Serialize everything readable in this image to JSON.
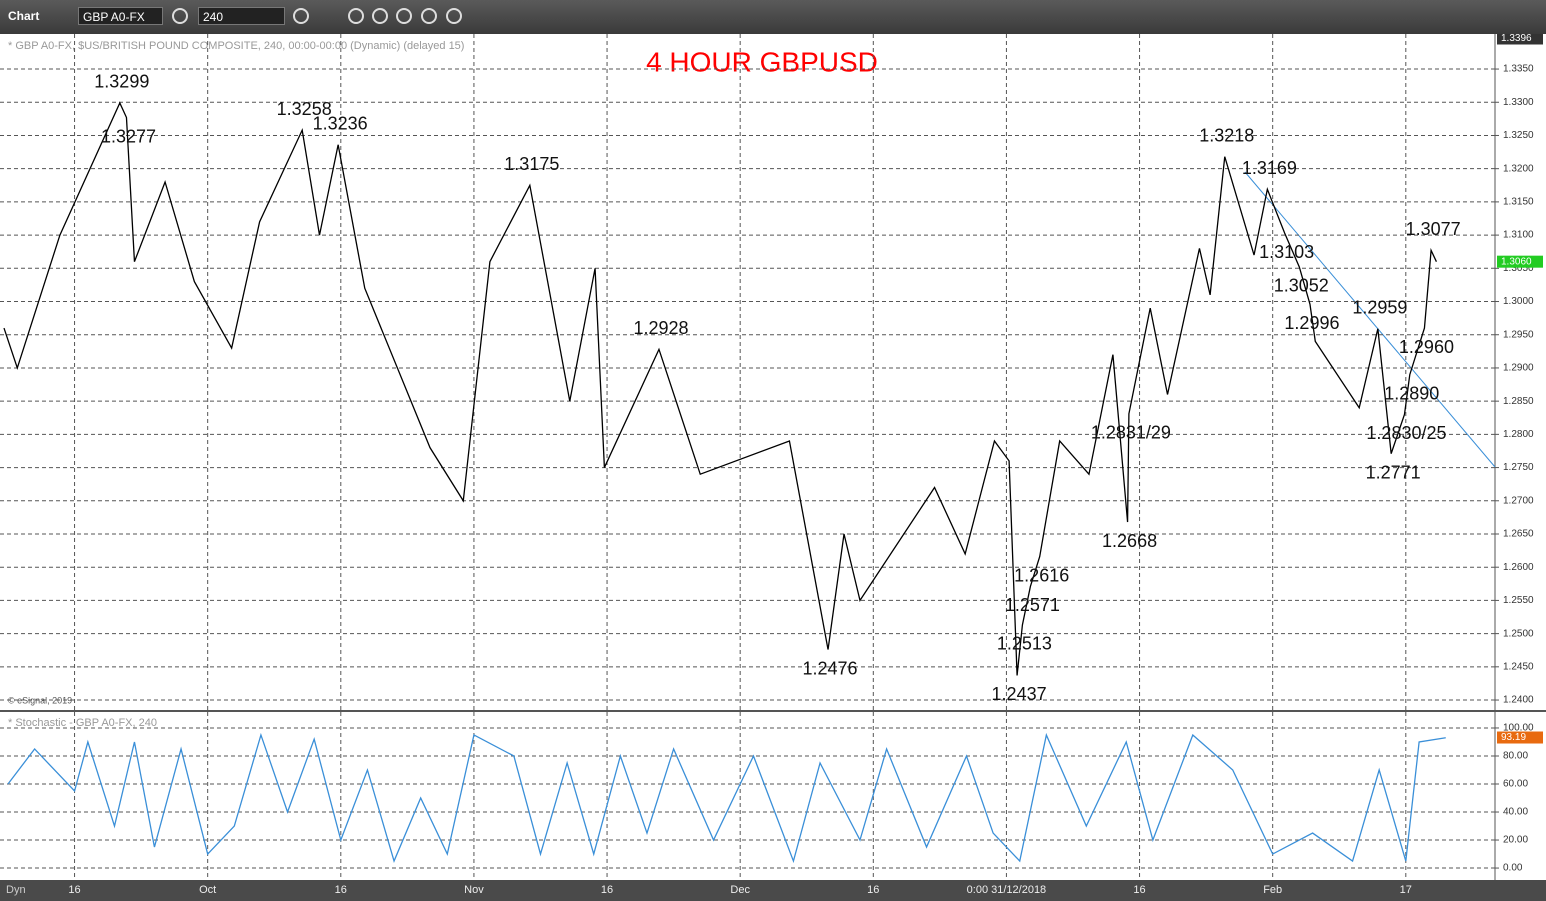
{
  "toolbar": {
    "title": "Chart",
    "symbol": "GBP A0-FX",
    "interval": "240"
  },
  "chart_data": [
    {
      "type": "line",
      "title": "4 HOUR GBPUSD",
      "subtitle": "* GBP A0-FX, $US/BRITISH POUND COMPOSITE, 240, 00:00-00:00 (Dynamic) (delayed 15)",
      "copyright": "© eSignal, 2019",
      "color": "#000000",
      "title_color": "#ff0000",
      "grid": true,
      "x": [
        -0.53,
        -0.43,
        -0.11,
        0.34,
        0.39,
        0.45,
        0.68,
        0.9,
        1.18,
        1.39,
        1.71,
        1.84,
        1.98,
        2.18,
        2.67,
        2.92,
        3.12,
        3.42,
        3.72,
        3.91,
        3.98,
        4.39,
        4.7,
        5.37,
        5.66,
        5.78,
        5.9,
        6.46,
        6.69,
        6.91,
        7.02,
        7.08,
        7.12,
        7.18,
        7.25,
        7.4,
        7.62,
        7.8,
        7.91,
        7.92,
        8.08,
        8.21,
        8.45,
        8.53,
        8.64,
        8.86,
        8.96,
        9.09,
        9.2,
        9.28,
        9.32,
        9.65,
        9.79,
        9.89,
        9.99,
        10.03,
        10.14,
        10.19,
        10.23
      ],
      "values": [
        1.296,
        1.29,
        1.31,
        1.3299,
        1.3277,
        1.306,
        1.318,
        1.303,
        1.293,
        1.312,
        1.3258,
        1.31,
        1.3236,
        1.302,
        1.278,
        1.27,
        1.306,
        1.3175,
        1.285,
        1.305,
        1.275,
        1.2928,
        1.274,
        1.279,
        1.2476,
        1.265,
        1.255,
        1.272,
        1.262,
        1.279,
        1.276,
        1.2437,
        1.2513,
        1.2571,
        1.2616,
        1.279,
        1.274,
        1.292,
        1.2668,
        1.2831,
        1.299,
        1.286,
        1.308,
        1.301,
        1.3218,
        1.307,
        1.3169,
        1.3103,
        1.3052,
        1.2996,
        1.294,
        1.284,
        1.2959,
        1.2771,
        1.283,
        1.289,
        1.296,
        1.3077,
        1.306
      ],
      "value_labels": [
        null,
        null,
        null,
        "1.3299",
        "1.3277",
        null,
        null,
        null,
        null,
        null,
        "1.3258",
        null,
        "1.3236",
        null,
        null,
        null,
        null,
        "1.3175",
        null,
        null,
        null,
        "1.2928",
        null,
        null,
        "1.2476",
        null,
        null,
        null,
        null,
        null,
        null,
        "1.2437",
        "1.2513",
        "1.2571",
        "1.2616",
        null,
        null,
        null,
        "1.2668",
        "1.2831/29",
        null,
        null,
        null,
        null,
        "1.3218",
        null,
        "1.3169",
        "1.3103",
        "1.3052",
        "1.2996",
        null,
        null,
        "1.2959",
        "1.2771",
        "1.2830/25",
        "1.2890",
        "1.2960",
        "1.3077",
        null
      ],
      "last": {
        "value": 1.306,
        "label": "1.3060"
      },
      "top": {
        "value": 1.3396,
        "label": "1.3396"
      },
      "ylim": [
        1.2385,
        1.3396
      ],
      "yticks": [
        {
          "value": 1.24,
          "label": "1.2400"
        },
        {
          "value": 1.245,
          "label": "1.2450"
        },
        {
          "value": 1.25,
          "label": "1.2500"
        },
        {
          "value": 1.255,
          "label": "1.2550"
        },
        {
          "value": 1.26,
          "label": "1.2600"
        },
        {
          "value": 1.265,
          "label": "1.2650"
        },
        {
          "value": 1.27,
          "label": "1.2700"
        },
        {
          "value": 1.275,
          "label": "1.2750"
        },
        {
          "value": 1.28,
          "label": "1.2800"
        },
        {
          "value": 1.285,
          "label": "1.2850"
        },
        {
          "value": 1.29,
          "label": "1.2900"
        },
        {
          "value": 1.295,
          "label": "1.2950"
        },
        {
          "value": 1.3,
          "label": "1.3000"
        },
        {
          "value": 1.305,
          "label": "1.3050"
        },
        {
          "value": 1.31,
          "label": "1.3100"
        },
        {
          "value": 1.315,
          "label": "1.3150"
        },
        {
          "value": 1.32,
          "label": "1.3200"
        },
        {
          "value": 1.325,
          "label": "1.3250"
        },
        {
          "value": 1.33,
          "label": "1.3300"
        },
        {
          "value": 1.335,
          "label": "1.3350"
        }
      ],
      "xlim": [
        -0.56,
        10.67
      ],
      "xticks": [
        {
          "value": 0,
          "label": "16"
        },
        {
          "value": 1,
          "label": "Oct"
        },
        {
          "value": 2,
          "label": "16"
        },
        {
          "value": 3,
          "label": "Nov"
        },
        {
          "value": 4,
          "label": "16"
        },
        {
          "value": 5,
          "label": "Dec"
        },
        {
          "value": 6,
          "label": "16"
        },
        {
          "value": 7,
          "label": "0:00 31/12/2018"
        },
        {
          "value": 8,
          "label": "16"
        },
        {
          "value": 9,
          "label": "Feb"
        },
        {
          "value": 10,
          "label": "17"
        }
      ],
      "footer": "Dyn"
    },
    {
      "type": "line",
      "title": "* Stochastic - GBP A0-FX, 240",
      "color": "#3a8fd8",
      "grid": true,
      "x": [
        -0.5,
        -0.3,
        0,
        0.1,
        0.3,
        0.45,
        0.6,
        0.8,
        1,
        1.2,
        1.4,
        1.6,
        1.8,
        2,
        2.2,
        2.4,
        2.6,
        2.8,
        3,
        3.3,
        3.5,
        3.7,
        3.9,
        4.1,
        4.3,
        4.5,
        4.8,
        5.1,
        5.4,
        5.6,
        5.9,
        6.1,
        6.4,
        6.7,
        6.9,
        7.1,
        7.3,
        7.6,
        7.9,
        8.1,
        8.4,
        8.7,
        9,
        9.3,
        9.6,
        9.8,
        10,
        10.1,
        10.3
      ],
      "values": [
        60,
        85,
        55,
        90,
        30,
        90,
        15,
        85,
        10,
        30,
        95,
        40,
        92,
        20,
        70,
        5,
        50,
        10,
        95,
        80,
        10,
        75,
        10,
        80,
        25,
        85,
        20,
        80,
        5,
        75,
        20,
        85,
        15,
        80,
        25,
        5,
        95,
        30,
        90,
        20,
        95,
        70,
        10,
        25,
        5,
        70,
        5,
        90,
        93
      ],
      "last": {
        "value": 93.19,
        "label": "93.19"
      },
      "ylim": [
        -7.1,
        111.4
      ],
      "yticks": [
        {
          "value": 0,
          "label": "0.00"
        },
        {
          "value": 20,
          "label": "20.00"
        },
        {
          "value": 40,
          "label": "40.00"
        },
        {
          "value": 60,
          "label": "60.00"
        },
        {
          "value": 80,
          "label": "80.00"
        },
        {
          "value": 100,
          "label": "100.00"
        }
      ]
    }
  ]
}
